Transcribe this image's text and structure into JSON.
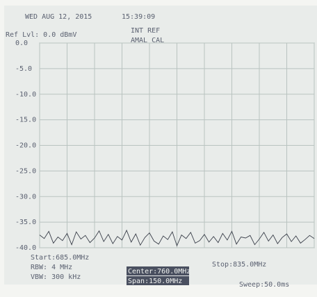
{
  "chart_data": {
    "type": "line",
    "x": [
      685,
      687.5,
      690,
      692.5,
      695,
      697.5,
      700,
      702.5,
      705,
      707.5,
      710,
      712.5,
      715,
      717.5,
      720,
      722.5,
      725,
      727.5,
      730,
      732.5,
      735,
      737.5,
      740,
      742.5,
      745,
      747.5,
      750,
      752.5,
      755,
      757.5,
      760,
      762.5,
      765,
      767.5,
      770,
      772.5,
      775,
      777.5,
      780,
      782.5,
      785,
      787.5,
      790,
      792.5,
      795,
      797.5,
      800,
      802.5,
      805,
      807.5,
      810,
      812.5,
      815,
      817.5,
      820,
      822.5,
      825,
      827.5,
      830,
      832.5,
      835
    ],
    "values": [
      -37.5,
      -38.2,
      -36.8,
      -39.1,
      -37.9,
      -38.6,
      -37.2,
      -39.4,
      -36.9,
      -38.3,
      -37.6,
      -39.0,
      -38.1,
      -36.7,
      -38.8,
      -37.4,
      -39.2,
      -37.8,
      -38.5,
      -36.6,
      -38.9,
      -37.3,
      -39.5,
      -38.0,
      -37.1,
      -38.7,
      -39.3,
      -37.7,
      -38.4,
      -36.9,
      -39.6,
      -37.5,
      -38.2,
      -37.0,
      -39.1,
      -38.6,
      -37.4,
      -38.9,
      -37.8,
      -39.0,
      -37.2,
      -38.5,
      -36.8,
      -39.3,
      -37.9,
      -38.1,
      -37.6,
      -39.4,
      -38.3,
      -37.0,
      -38.7,
      -37.5,
      -39.2,
      -38.0,
      -37.3,
      -38.8,
      -37.7,
      -39.1,
      -38.4,
      -37.6,
      -38.2
    ],
    "color": "#3a3f4a",
    "xlim": [
      685,
      835
    ],
    "xticks": [
      685,
      700,
      715,
      730,
      745,
      760,
      775,
      790,
      805,
      820,
      835
    ],
    "ylim": [
      -40,
      0
    ],
    "yticks": [
      {
        "value": 0,
        "label": "0.0"
      },
      {
        "value": -5,
        "label": "-5.0"
      },
      {
        "value": -10,
        "label": "-10.0"
      },
      {
        "value": -15,
        "label": "-15.0"
      },
      {
        "value": -20,
        "label": "-20.0"
      },
      {
        "value": -25,
        "label": "-25.0"
      },
      {
        "value": -30,
        "label": "-30.0"
      },
      {
        "value": -35,
        "label": "-35.0"
      },
      {
        "value": -40,
        "label": "-40.0"
      }
    ],
    "grid": true,
    "annotations": [
      "WED AUG 12, 2015",
      "15:39:09",
      "INT REF",
      "Ref Lvl: 0.0 dBmV",
      "AMAL  CAL",
      "Start:685.0MHz",
      "RBW: 4 MHz",
      "VBW: 300 kHz",
      "Center:760.0MHz",
      "Span:150.0MHz",
      "Stop:835.0MHz",
      "Sweep:50.0ms"
    ]
  }
}
